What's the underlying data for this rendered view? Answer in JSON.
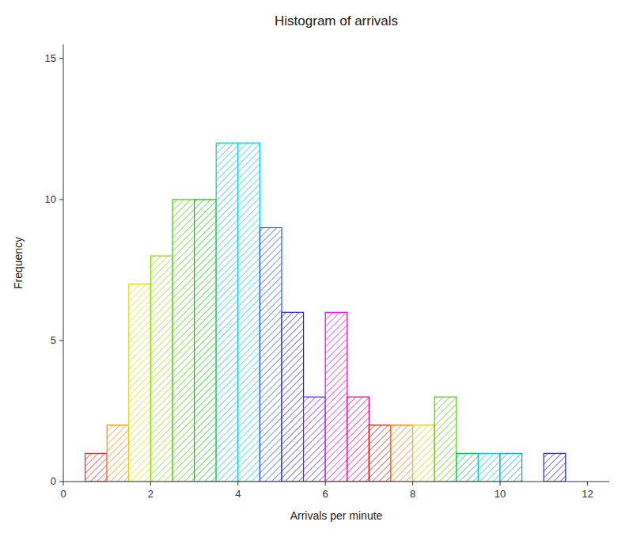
{
  "chart_data": {
    "type": "histogram",
    "title": "Histogram of arrivals",
    "x_label": "Arrivals per minute",
    "y_label": "Frequency",
    "bins": [
      0.5,
      1.0,
      1.5,
      2.0,
      2.5,
      3.0,
      3.5,
      4.0,
      4.5,
      5.0,
      5.5,
      6.0,
      6.5,
      7.0,
      7.5,
      8.0,
      8.5,
      9.0,
      9.5,
      10.0,
      10.5,
      11.0,
      11.5
    ],
    "values": [
      1,
      2,
      7,
      8,
      10,
      10,
      12,
      12,
      9,
      6,
      3,
      6,
      3,
      2,
      2,
      2,
      3,
      1,
      1,
      1,
      0,
      1
    ],
    "colors": [
      "#FF2020",
      "#FF8800",
      "#DDDD00",
      "#88DD00",
      "#44CC00",
      "#00CC00",
      "#00CCAA",
      "#00CCEE",
      "#2255FF",
      "#2222EE",
      "#6622EE",
      "#EE00EE",
      "#EE0077",
      "#DD1111",
      "#FF7700",
      "#CCCC00",
      "#55CC00",
      "#00BB55",
      "#00CCDD",
      "#00AACC",
      null,
      "#2222DD"
    ],
    "xlim": [
      0,
      12.5
    ],
    "ylim": [
      0,
      15.5
    ],
    "xticks": [
      0,
      2,
      4,
      6,
      8,
      10,
      12
    ],
    "yticks": [
      0,
      5,
      10,
      15
    ],
    "grid": false
  }
}
